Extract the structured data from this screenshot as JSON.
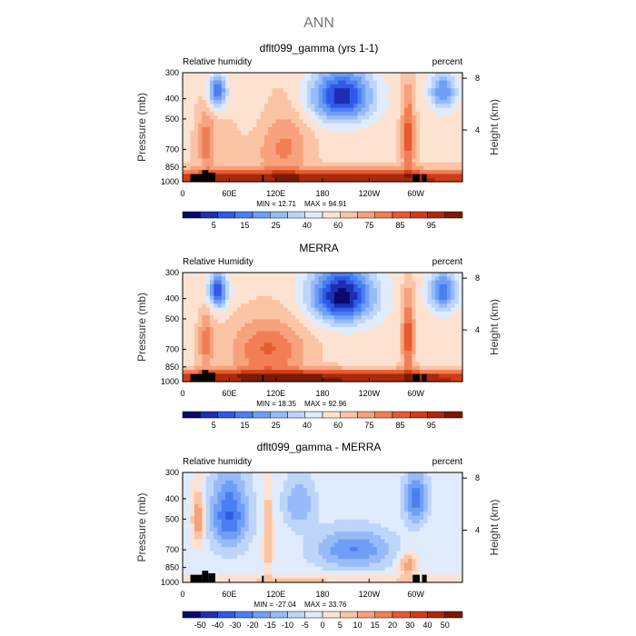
{
  "figure_title": "ANN",
  "chart_data": [
    {
      "type": "heatmap",
      "title": "dflt099_gamma (yrs 1-1)",
      "variable": "Relative humidity",
      "units": "percent",
      "ylabel": "Pressure (mb)",
      "ylabel_right": "Height (km)",
      "pressure_ticks": [
        300,
        400,
        500,
        700,
        850,
        1000
      ],
      "height_ticks": [
        8,
        4
      ],
      "lon_ticks": [
        "0",
        "60E",
        "120E",
        "180",
        "120W",
        "60W"
      ],
      "min_label": "MIN =   12.71",
      "max_label": "MAX =   94.91",
      "colorbar_ticks": [
        "5",
        "15",
        "25",
        "40",
        "60",
        "75",
        "85",
        "95"
      ],
      "palette": [
        "#0a0a6e",
        "#1c2fb4",
        "#2f59e6",
        "#4a7ff2",
        "#6f9ef5",
        "#97baf8",
        "#bed5fa",
        "#e0ebfc",
        "#fde2d2",
        "#fbc4a5",
        "#f7a27c",
        "#f27e55",
        "#e85a30",
        "#cf3d16",
        "#a82a0b",
        "#7a1a06"
      ],
      "levels": [
        12.71,
        30,
        45,
        60,
        75,
        85,
        94.91
      ]
    },
    {
      "type": "heatmap",
      "title": "MERRA",
      "variable": "Relative Humidity",
      "units": "percent",
      "ylabel": "Pressure (mb)",
      "ylabel_right": "Height (km)",
      "pressure_ticks": [
        300,
        400,
        500,
        700,
        850,
        1000
      ],
      "height_ticks": [
        8,
        4
      ],
      "lon_ticks": [
        "0",
        "60E",
        "120E",
        "180",
        "120W",
        "60W"
      ],
      "min_label": "MIN =   18.35",
      "max_label": "MAX =   92.96",
      "colorbar_ticks": [
        "5",
        "15",
        "25",
        "40",
        "60",
        "75",
        "85",
        "95"
      ],
      "palette": [
        "#0a0a6e",
        "#1c2fb4",
        "#2f59e6",
        "#4a7ff2",
        "#6f9ef5",
        "#97baf8",
        "#bed5fa",
        "#e0ebfc",
        "#fde2d2",
        "#fbc4a5",
        "#f7a27c",
        "#f27e55",
        "#e85a30",
        "#cf3d16",
        "#a82a0b",
        "#7a1a06"
      ],
      "levels": [
        18.35,
        30,
        45,
        60,
        75,
        85,
        92.96
      ]
    },
    {
      "type": "heatmap",
      "title": "dflt099_gamma - MERRA",
      "variable": "Relative humidity",
      "units": "percent",
      "ylabel": "Pressure (mb)",
      "ylabel_right": "Height (km)",
      "pressure_ticks": [
        300,
        400,
        500,
        700,
        850,
        1000
      ],
      "height_ticks": [
        8,
        4
      ],
      "lon_ticks": [
        "0",
        "60E",
        "120E",
        "180",
        "120W",
        "60W"
      ],
      "min_label": "MIN =  -27.04",
      "max_label": "MAX =   33.76",
      "colorbar_ticks": [
        "-50",
        "-40",
        "-30",
        "-20",
        "-15",
        "-10",
        "-5",
        "0",
        "5",
        "10",
        "15",
        "20",
        "30",
        "40",
        "50"
      ],
      "palette": [
        "#0a0a6e",
        "#1c2fb4",
        "#2f59e6",
        "#4a7ff2",
        "#6f9ef5",
        "#97baf8",
        "#bed5fa",
        "#e0ebfc",
        "#fde2d2",
        "#fbc4a5",
        "#f7a27c",
        "#f27e55",
        "#e85a30",
        "#cf3d16",
        "#a82a0b",
        "#7a1a06"
      ],
      "levels": [
        -27.04,
        -15,
        -5,
        0,
        5,
        15,
        33.76
      ]
    }
  ]
}
